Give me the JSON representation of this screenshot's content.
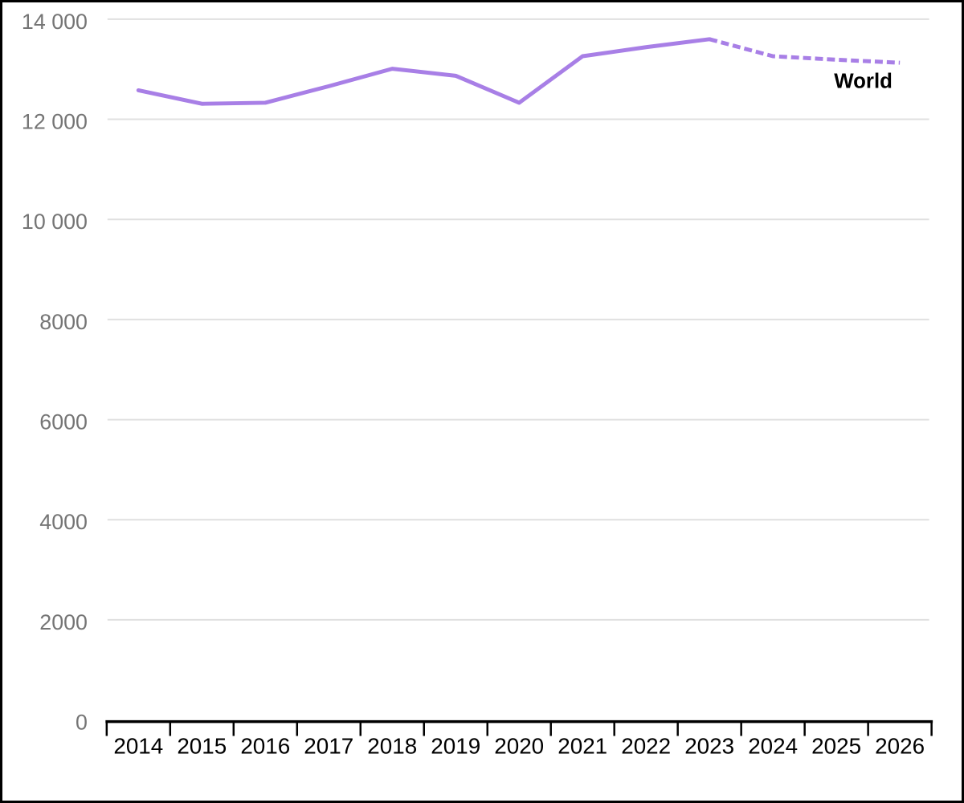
{
  "chart_data": {
    "type": "line",
    "title": "",
    "x_categories": [
      "2014",
      "2015",
      "2016",
      "2017",
      "2018",
      "2019",
      "2020",
      "2021",
      "2022",
      "2023",
      "2024",
      "2025",
      "2026"
    ],
    "series": [
      {
        "name": "World",
        "values": [
          12580,
          12310,
          12330,
          12660,
          13010,
          12870,
          12330,
          13260,
          13440,
          13600,
          13260,
          13190,
          13130
        ],
        "color": "#a87fe6",
        "forecast_from_index": 9,
        "forecast_style": "dashed"
      }
    ],
    "y_axis": {
      "range": [
        0,
        14000
      ],
      "ticks": [
        {
          "label": "0",
          "value": 0
        },
        {
          "label": "2000",
          "value": 2000
        },
        {
          "label": "4000",
          "value": 4000
        },
        {
          "label": "6000",
          "value": 6000
        },
        {
          "label": "8000",
          "value": 8000
        },
        {
          "label": "10 000",
          "value": 10000
        },
        {
          "label": "12 000",
          "value": 12000
        },
        {
          "label": "14 000",
          "value": 14000
        }
      ],
      "tick_label_color": "#757575"
    },
    "x_axis": {
      "axis_color": "#000000",
      "tick_label_color": "#000000"
    },
    "grid": {
      "show": true,
      "color": "#e0e0e0"
    },
    "legend": {
      "position": "inline-right",
      "entries": [
        "World"
      ],
      "label_color": "#000000"
    }
  }
}
